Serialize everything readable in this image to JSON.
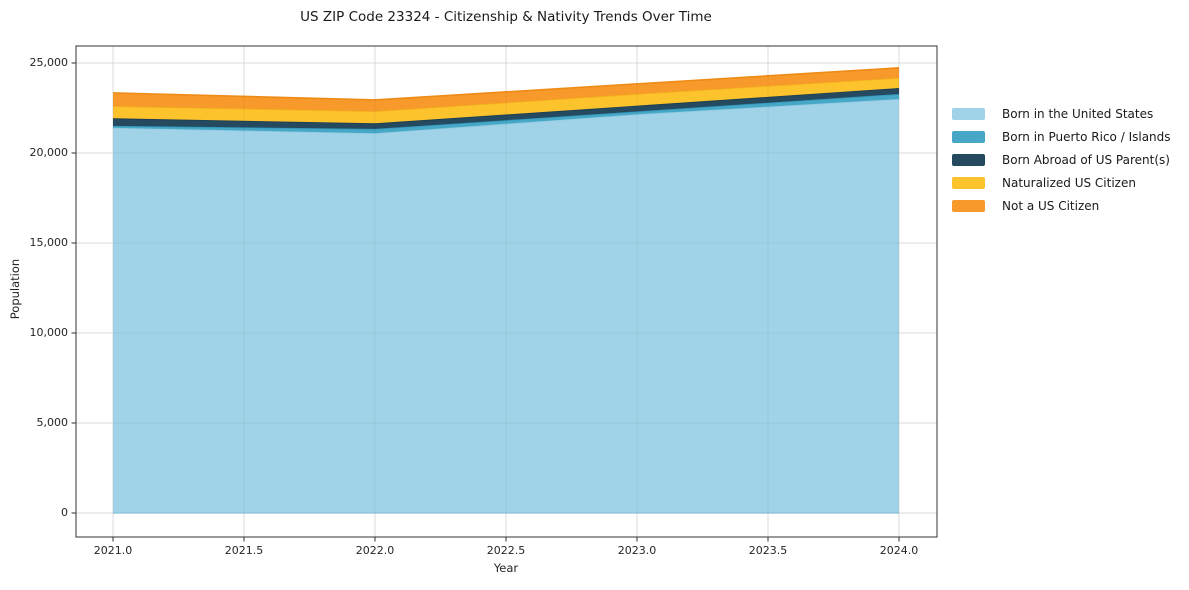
{
  "window": {
    "background": "#ffffff"
  },
  "colors": {
    "grid": "#e7e7e7",
    "grid_overlay": "rgba(0,0,0,0.05)",
    "spine": "#333333",
    "tick": "#333333",
    "text": "#262626"
  },
  "chart_data": {
    "type": "area",
    "stacked": true,
    "title": "US ZIP Code 23324 - Citizenship & Nativity Trends Over Time",
    "xlabel": "Year",
    "ylabel": "Population",
    "x": [
      2021,
      2022,
      2023,
      2024
    ],
    "series": [
      {
        "name": "Born in the United States",
        "color": "#a1d3e8",
        "edge": "#8fc9e2",
        "values": [
          21400,
          21100,
          22150,
          23000
        ]
      },
      {
        "name": "Born in Puerto Rico / Islands",
        "color": "#46a8c6",
        "edge": "#3196b9",
        "values": [
          110,
          240,
          160,
          280
        ]
      },
      {
        "name": "Born Abroad of US Parent(s)",
        "color": "#25495e",
        "edge": "#1d3e52",
        "values": [
          420,
          310,
          320,
          330
        ]
      },
      {
        "name": "Naturalized US Citizen",
        "color": "#fdc32d",
        "edge": "#f2b31c",
        "values": [
          670,
          670,
          650,
          560
        ]
      },
      {
        "name": "Not a US Citizen",
        "color": "#f8992b",
        "edge": "#ee8b16",
        "values": [
          740,
          630,
          560,
          560
        ]
      }
    ],
    "x_ticks": [
      "2021.0",
      "2021.5",
      "2022.0",
      "2022.5",
      "2023.0",
      "2023.5",
      "2024.0"
    ],
    "x_tick_values": [
      2021,
      2021.5,
      2022,
      2022.5,
      2023,
      2023.5,
      2024
    ],
    "y_ticks": [
      "0",
      "5,000",
      "10,000",
      "15,000",
      "20,000",
      "25,000"
    ],
    "y_tick_values": [
      0,
      5000,
      10000,
      15000,
      20000,
      25000
    ],
    "xlim": [
      2021,
      2024
    ],
    "ylim": [
      0,
      25000
    ],
    "grid": true,
    "legend_position": "right-outside"
  }
}
